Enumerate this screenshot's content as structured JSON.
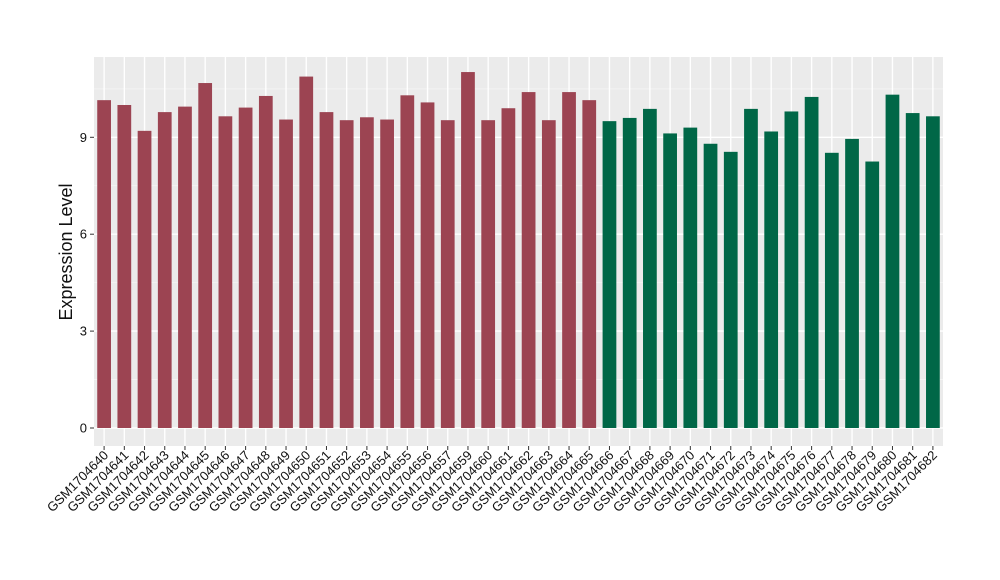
{
  "chart_data": {
    "type": "bar",
    "title": "",
    "xlabel": "",
    "ylabel": "Expression Level",
    "ylim": [
      0,
      11.6
    ],
    "yticks": [
      0,
      3,
      6,
      9
    ],
    "grid": true,
    "legend": "none",
    "colors": {
      "group1": "#9c4452",
      "group2": "#006747",
      "panel_bg": "#ebebeb",
      "grid_major": "#ffffff",
      "grid_minor": "#f5f5f5"
    },
    "categories": [
      "GSM1704640",
      "GSM1704641",
      "GSM1704642",
      "GSM1704643",
      "GSM1704644",
      "GSM1704645",
      "GSM1704646",
      "GSM1704647",
      "GSM1704648",
      "GSM1704649",
      "GSM1704650",
      "GSM1704651",
      "GSM1704652",
      "GSM1704653",
      "GSM1704654",
      "GSM1704655",
      "GSM1704656",
      "GSM1704657",
      "GSM1704659",
      "GSM1704660",
      "GSM1704661",
      "GSM1704662",
      "GSM1704663",
      "GSM1704664",
      "GSM1704665",
      "GSM1704666",
      "GSM1704667",
      "GSM1704668",
      "GSM1704669",
      "GSM1704670",
      "GSM1704671",
      "GSM1704672",
      "GSM1704673",
      "GSM1704674",
      "GSM1704675",
      "GSM1704676",
      "GSM1704677",
      "GSM1704678",
      "GSM1704679",
      "GSM1704680",
      "GSM1704681",
      "GSM1704682"
    ],
    "values": [
      10.15,
      10.0,
      9.2,
      9.78,
      9.95,
      10.68,
      9.65,
      9.92,
      10.28,
      9.55,
      10.88,
      9.78,
      9.53,
      9.62,
      9.55,
      10.3,
      10.08,
      9.53,
      11.02,
      9.53,
      9.9,
      10.4,
      9.53,
      10.4,
      10.15,
      9.5,
      9.6,
      9.88,
      9.12,
      9.3,
      8.8,
      8.55,
      9.88,
      9.18,
      9.8,
      10.25,
      8.52,
      8.95,
      8.25,
      10.32,
      9.75,
      9.65
    ],
    "group": [
      "group1",
      "group1",
      "group1",
      "group1",
      "group1",
      "group1",
      "group1",
      "group1",
      "group1",
      "group1",
      "group1",
      "group1",
      "group1",
      "group1",
      "group1",
      "group1",
      "group1",
      "group1",
      "group1",
      "group1",
      "group1",
      "group1",
      "group1",
      "group1",
      "group1",
      "group2",
      "group2",
      "group2",
      "group2",
      "group2",
      "group2",
      "group2",
      "group2",
      "group2",
      "group2",
      "group2",
      "group2",
      "group2",
      "group2",
      "group2",
      "group2",
      "group2"
    ]
  }
}
